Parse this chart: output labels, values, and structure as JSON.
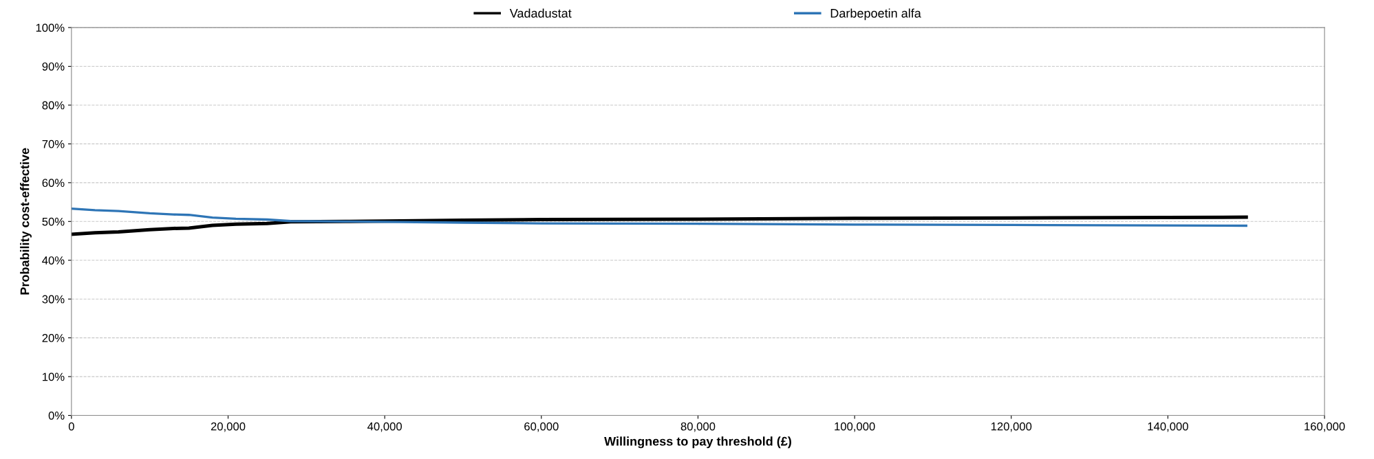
{
  "chart_data": {
    "type": "line",
    "xlabel": "Willingness to pay threshold (£)",
    "ylabel": "Probability cost-effective",
    "x": [
      0,
      3000,
      6000,
      10000,
      13000,
      15000,
      18000,
      21000,
      25000,
      28000,
      35000,
      40000,
      50000,
      60000,
      80000,
      100000,
      120000,
      150000
    ],
    "series": [
      {
        "name": "Vadadustat",
        "color": "#000000",
        "values": [
          46.7,
          47.1,
          47.3,
          47.9,
          48.2,
          48.3,
          49.0,
          49.3,
          49.5,
          49.9,
          50.0,
          50.1,
          50.3,
          50.5,
          50.6,
          50.8,
          50.9,
          51.1
        ]
      },
      {
        "name": "Darbepoetin alfa",
        "color": "#2e75b6",
        "values": [
          53.3,
          52.9,
          52.7,
          52.1,
          51.8,
          51.7,
          51.0,
          50.7,
          50.5,
          50.1,
          50.0,
          49.9,
          49.7,
          49.5,
          49.4,
          49.2,
          49.1,
          48.9
        ]
      }
    ],
    "xlim": [
      0,
      160000
    ],
    "xticks": [
      {
        "value": 0,
        "label": "0"
      },
      {
        "value": 20000,
        "label": "20,000"
      },
      {
        "value": 40000,
        "label": "40,000"
      },
      {
        "value": 60000,
        "label": "60,000"
      },
      {
        "value": 80000,
        "label": "80,000"
      },
      {
        "value": 100000,
        "label": "100,000"
      },
      {
        "value": 120000,
        "label": "120,000"
      },
      {
        "value": 140000,
        "label": "140,000"
      },
      {
        "value": 160000,
        "label": "160,000"
      }
    ],
    "ylim": [
      0,
      100
    ],
    "yticks": [
      {
        "value": 0,
        "label": "0%"
      },
      {
        "value": 10,
        "label": "10%"
      },
      {
        "value": 20,
        "label": "20%"
      },
      {
        "value": 30,
        "label": "30%"
      },
      {
        "value": 40,
        "label": "40%"
      },
      {
        "value": 50,
        "label": "50%"
      },
      {
        "value": 60,
        "label": "60%"
      },
      {
        "value": 70,
        "label": "70%"
      },
      {
        "value": 80,
        "label": "80%"
      },
      {
        "value": 90,
        "label": "90%"
      },
      {
        "value": 100,
        "label": "100%"
      }
    ],
    "grid": "y",
    "legend": "top",
    "marker": "none",
    "line_style": "solid"
  }
}
